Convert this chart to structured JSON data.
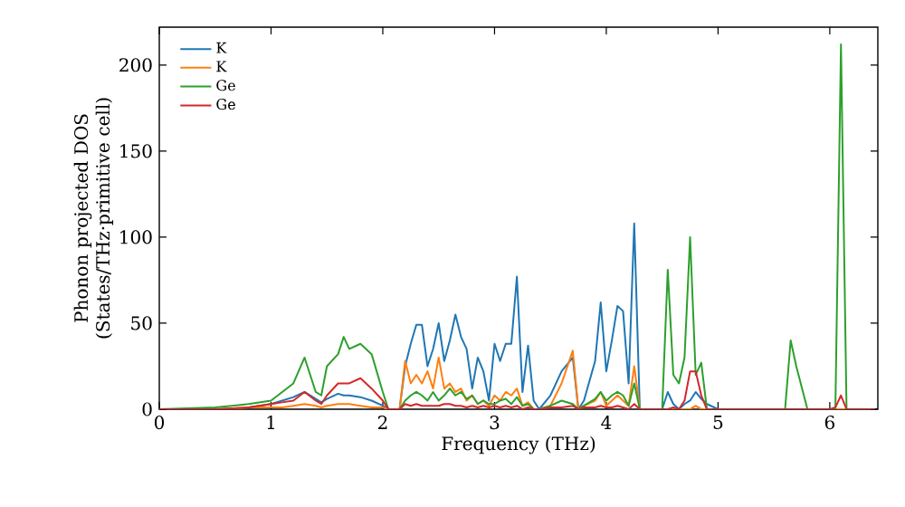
{
  "chart_data": {
    "type": "line",
    "xlabel": "Frequency (THz)",
    "ylabel": "Phonon projected DOS (States/THz·primitive cell)",
    "x": [
      0,
      0.5,
      0.8,
      1.0,
      1.1,
      1.2,
      1.3,
      1.4,
      1.45,
      1.5,
      1.6,
      1.65,
      1.7,
      1.8,
      1.9,
      2.0,
      2.05,
      2.15,
      2.2,
      2.25,
      2.3,
      2.35,
      2.4,
      2.45,
      2.5,
      2.55,
      2.6,
      2.65,
      2.7,
      2.75,
      2.8,
      2.85,
      2.9,
      2.95,
      3.0,
      3.05,
      3.1,
      3.15,
      3.2,
      3.25,
      3.3,
      3.35,
      3.4,
      3.5,
      3.6,
      3.7,
      3.75,
      3.8,
      3.9,
      3.95,
      4.0,
      4.05,
      4.1,
      4.15,
      4.2,
      4.25,
      4.3,
      4.35,
      4.5,
      4.55,
      4.6,
      4.65,
      4.7,
      4.75,
      4.8,
      4.85,
      4.9,
      5.0,
      5.6,
      5.65,
      5.7,
      5.8,
      6.0,
      6.05,
      6.1,
      6.15,
      6.4
    ],
    "series": [
      {
        "name": "K",
        "color": "#1f77b4",
        "values": [
          null,
          null,
          1,
          3,
          5,
          7,
          10,
          6,
          4,
          6,
          9,
          8,
          8,
          7,
          5,
          2,
          0,
          0,
          25,
          38,
          49,
          49,
          25,
          35,
          50,
          28,
          40,
          55,
          42,
          35,
          12,
          30,
          22,
          5,
          38,
          28,
          38,
          38,
          77,
          10,
          37,
          5,
          0,
          8,
          22,
          30,
          0,
          5,
          28,
          62,
          22,
          40,
          60,
          57,
          15,
          108,
          0,
          0,
          0,
          10,
          3,
          0,
          3,
          5,
          10,
          6,
          3,
          0,
          null,
          null,
          null,
          null,
          null,
          null,
          null,
          null,
          null
        ]
      },
      {
        "name": "K",
        "color": "#ff7f0e",
        "values": [
          0,
          0,
          1,
          1,
          1,
          2,
          3,
          2,
          1,
          2,
          3,
          3,
          3,
          2,
          1,
          1,
          0,
          0,
          28,
          15,
          20,
          15,
          22,
          12,
          30,
          12,
          15,
          10,
          12,
          5,
          8,
          3,
          5,
          2,
          8,
          5,
          10,
          8,
          12,
          2,
          4,
          0,
          0,
          2,
          15,
          34,
          0,
          2,
          5,
          10,
          2,
          5,
          8,
          5,
          2,
          25,
          0,
          0,
          0,
          0,
          0,
          0,
          0,
          0,
          2,
          0,
          0,
          0,
          0,
          0,
          0,
          0,
          0,
          0,
          0,
          0,
          0
        ]
      },
      {
        "name": "Ge",
        "color": "#2ca02c",
        "values": [
          0,
          1,
          3,
          5,
          10,
          15,
          30,
          10,
          8,
          25,
          32,
          42,
          35,
          38,
          32,
          10,
          0,
          0,
          5,
          8,
          10,
          8,
          5,
          10,
          5,
          8,
          12,
          8,
          10,
          6,
          8,
          3,
          5,
          3,
          3,
          5,
          6,
          3,
          7,
          2,
          3,
          0,
          0,
          2,
          5,
          3,
          0,
          2,
          6,
          10,
          5,
          8,
          10,
          8,
          2,
          15,
          0,
          0,
          0,
          81,
          20,
          15,
          30,
          100,
          20,
          27,
          0,
          0,
          0,
          40,
          25,
          0,
          0,
          0,
          212,
          0,
          0
        ]
      },
      {
        "name": "Ge",
        "color": "#d62728",
        "values": [
          0,
          0,
          1,
          3,
          4,
          5,
          10,
          5,
          3,
          8,
          15,
          15,
          15,
          18,
          12,
          5,
          0,
          0,
          3,
          2,
          3,
          2,
          2,
          2,
          2,
          3,
          3,
          2,
          2,
          1,
          2,
          1,
          2,
          1,
          2,
          1,
          2,
          1,
          2,
          0,
          1,
          0,
          0,
          1,
          1,
          2,
          0,
          1,
          1,
          2,
          1,
          1,
          2,
          1,
          0,
          3,
          0,
          0,
          0,
          0,
          1,
          0,
          5,
          22,
          22,
          8,
          0,
          0,
          0,
          0,
          0,
          0,
          0,
          1,
          8,
          0,
          0
        ]
      }
    ],
    "xlim": [
      0,
      6.43
    ],
    "ylim": [
      0,
      222
    ],
    "xticks": [
      0,
      1,
      2,
      3,
      4,
      5,
      6
    ],
    "yticks": [
      0,
      50,
      100,
      150,
      200
    ],
    "legend": "top left",
    "grid": false
  }
}
